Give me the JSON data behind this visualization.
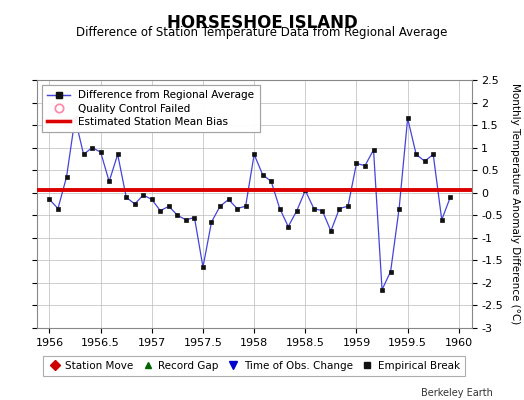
{
  "title": "HORSESHOE ISLAND",
  "subtitle": "Difference of Station Temperature Data from Regional Average",
  "ylabel_right": "Monthly Temperature Anomaly Difference (°C)",
  "xlim": [
    1955.875,
    1960.125
  ],
  "ylim": [
    -3.0,
    2.5
  ],
  "yticks": [
    -3,
    -2.5,
    -2,
    -1.5,
    -1,
    -0.5,
    0,
    0.5,
    1,
    1.5,
    2,
    2.5
  ],
  "ytick_labels": [
    "-3",
    "-2.5",
    "-2",
    "-1.5",
    "-1",
    "-0.5",
    "0",
    "0.5",
    "1",
    "1.5",
    "2",
    "2.5"
  ],
  "xticks": [
    1956,
    1956.5,
    1957,
    1957.5,
    1958,
    1958.5,
    1959,
    1959.5,
    1960
  ],
  "xtick_labels": [
    "1956",
    "1956.5",
    "1957",
    "1957.5",
    "1958",
    "1958.5",
    "1959",
    "1959.5",
    "1960"
  ],
  "bias_line_y": 0.05,
  "line_color": "#4444dd",
  "marker_color": "#111111",
  "bias_color": "#dd0000",
  "background_color": "#ffffff",
  "grid_color": "#bbbbbb",
  "x_values": [
    1956.0,
    1956.0833,
    1956.1667,
    1956.25,
    1956.3333,
    1956.4167,
    1956.5,
    1956.5833,
    1956.6667,
    1956.75,
    1956.8333,
    1956.9167,
    1957.0,
    1957.0833,
    1957.1667,
    1957.25,
    1957.3333,
    1957.4167,
    1957.5,
    1957.5833,
    1957.6667,
    1957.75,
    1957.8333,
    1957.9167,
    1958.0,
    1958.0833,
    1958.1667,
    1958.25,
    1958.3333,
    1958.4167,
    1958.5,
    1958.5833,
    1958.6667,
    1958.75,
    1958.8333,
    1958.9167,
    1959.0,
    1959.0833,
    1959.1667,
    1959.25,
    1959.3333,
    1959.4167,
    1959.5,
    1959.5833,
    1959.6667,
    1959.75,
    1959.8333,
    1959.9167
  ],
  "y_values": [
    -0.15,
    -0.35,
    0.35,
    1.65,
    0.85,
    1.0,
    0.9,
    0.25,
    0.85,
    -0.1,
    -0.25,
    -0.05,
    -0.15,
    -0.4,
    -0.3,
    -0.5,
    -0.6,
    -0.55,
    -1.65,
    -0.65,
    -0.3,
    -0.15,
    -0.35,
    -0.3,
    0.85,
    0.4,
    0.25,
    -0.35,
    -0.75,
    -0.4,
    0.05,
    -0.35,
    -0.4,
    -0.85,
    -0.35,
    -0.3,
    0.65,
    0.6,
    0.95,
    -2.15,
    -1.75,
    -0.35,
    1.65,
    0.85,
    0.7,
    0.85,
    -0.6,
    -0.1
  ],
  "title_fontsize": 12,
  "subtitle_fontsize": 8.5,
  "legend_fontsize": 7.5,
  "tick_fontsize": 8,
  "ylabel_fontsize": 7.5,
  "berkeley_earth_text": "Berkeley Earth",
  "bottom_legend_items": [
    {
      "label": "Station Move",
      "color": "#cc0000",
      "marker": "D"
    },
    {
      "label": "Record Gap",
      "color": "#006600",
      "marker": "^"
    },
    {
      "label": "Time of Obs. Change",
      "color": "#0000cc",
      "marker": "v"
    },
    {
      "label": "Empirical Break",
      "color": "#111111",
      "marker": "s"
    }
  ]
}
